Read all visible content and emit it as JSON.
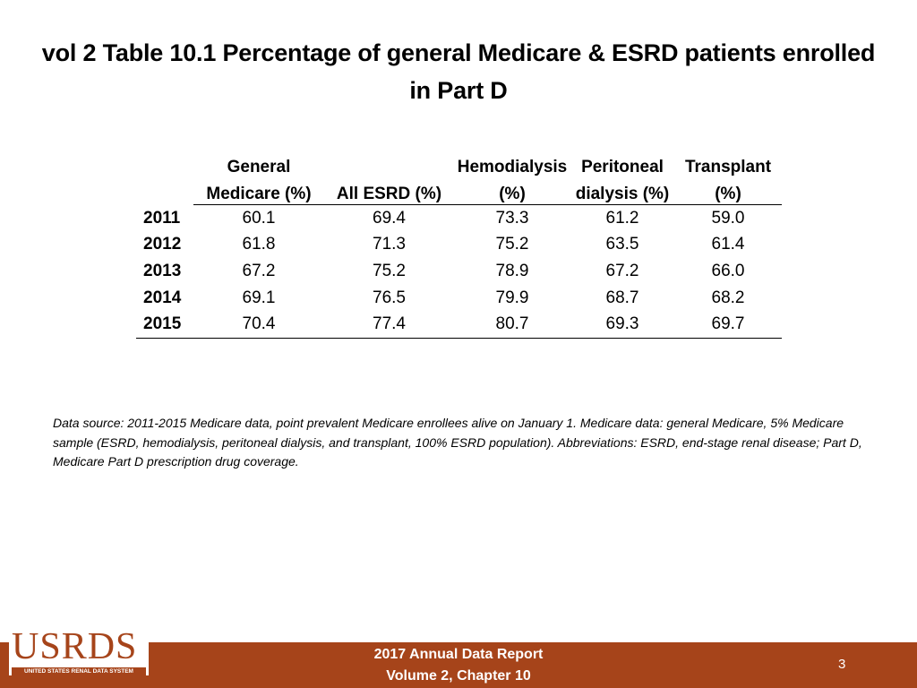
{
  "title": "vol 2 Table 10.1 Percentage of general Medicare & ESRD patients enrolled in Part D",
  "table": {
    "header_line1": [
      "General",
      "",
      "Hemodialysis",
      "Peritoneal",
      "Transplant"
    ],
    "header_line2": [
      "Medicare (%)",
      "All ESRD (%)",
      "(%)",
      "dialysis (%)",
      "(%)"
    ],
    "rows": [
      {
        "year": "2011",
        "values": [
          "60.1",
          "69.4",
          "73.3",
          "61.2",
          "59.0"
        ]
      },
      {
        "year": "2012",
        "values": [
          "61.8",
          "71.3",
          "75.2",
          "63.5",
          "61.4"
        ]
      },
      {
        "year": "2013",
        "values": [
          "67.2",
          "75.2",
          "78.9",
          "67.2",
          "66.0"
        ]
      },
      {
        "year": "2014",
        "values": [
          "69.1",
          "76.5",
          "79.9",
          "68.7",
          "68.2"
        ]
      },
      {
        "year": "2015",
        "values": [
          "70.4",
          "77.4",
          "80.7",
          "69.3",
          "69.7"
        ]
      }
    ]
  },
  "note": "Data source: 2011-2015 Medicare data, point prevalent Medicare enrollees alive on January 1. Medicare data: general Medicare, 5% Medicare sample (ESRD, hemodialysis, peritoneal dialysis, and transplant, 100% ESRD population). Abbreviations: ESRD, end-stage renal disease; Part D, Medicare Part D prescription drug coverage.",
  "footer": {
    "line1": "2017 Annual Data Report",
    "line2": "Volume 2, Chapter 10",
    "page_number": "3",
    "logo_text": "USRDS",
    "logo_subtext": "UNITED STATES RENAL DATA SYSTEM"
  },
  "colors": {
    "footer_bar": "#a6441a",
    "logo": "#a6441a"
  }
}
